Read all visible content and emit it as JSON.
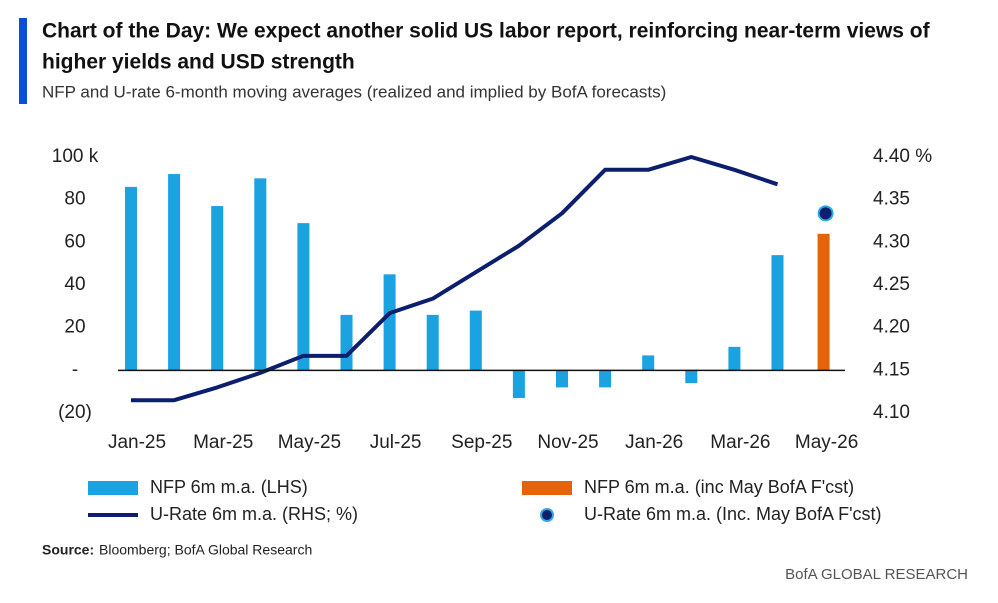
{
  "chart_data": {
    "type": "bar-line",
    "title_line1": "Chart of the Day: We expect another solid US labor report, reinforcing near-term views of",
    "title_line2": "higher yields and USD strength",
    "subtitle": "NFP and U-rate 6-month moving averages (realized and implied by BofA forecasts)",
    "categories": [
      "Jan-25",
      null,
      "Mar-25",
      null,
      "May-25",
      null,
      "Jul-25",
      null,
      "Sep-25",
      null,
      "Nov-25",
      null,
      "Jan-26",
      null,
      "Mar-26",
      null,
      "May-26"
    ],
    "series": [
      {
        "name": "NFP 6m m.a. (LHS)",
        "type": "bar",
        "axis": "y",
        "color": "#1aa3e0",
        "values": [
          86,
          92,
          77,
          90,
          69,
          26,
          45,
          26,
          28,
          -13,
          -8,
          -8,
          7,
          -6,
          11,
          54,
          null
        ]
      },
      {
        "name": "NFP 6m m.a. (inc May BofA F'cst)",
        "type": "bar",
        "axis": "y",
        "color": "#e5640b",
        "values": [
          null,
          null,
          null,
          null,
          null,
          null,
          null,
          null,
          null,
          null,
          null,
          null,
          null,
          null,
          null,
          null,
          64
        ]
      },
      {
        "name": "U-Rate 6m m.a. (RHS; %)",
        "type": "line",
        "axis": "y2",
        "color": "#0c1f6e",
        "values": [
          4.115,
          4.115,
          4.13,
          4.147,
          4.167,
          4.167,
          4.217,
          4.234,
          4.265,
          4.296,
          4.334,
          4.385,
          4.385,
          4.4,
          4.385,
          4.368,
          null
        ]
      },
      {
        "name": "U-Rate 6m m.a. (Inc. May BofA F'cst)",
        "type": "dot",
        "axis": "y2",
        "color": "#0c1f6e",
        "values": [
          null,
          null,
          null,
          null,
          null,
          null,
          null,
          null,
          null,
          null,
          null,
          null,
          null,
          null,
          null,
          null,
          4.334
        ]
      }
    ],
    "ylim": [
      -20,
      100
    ],
    "yticks": [
      {
        "value": -20,
        "label": "(20)"
      },
      {
        "value": 0,
        "label": "-"
      },
      20,
      40,
      60,
      80,
      {
        "value": 100,
        "label": "100 k"
      }
    ],
    "y2lim": [
      4.1,
      4.4
    ],
    "y2ticks": [
      {
        "value": 4.1,
        "label": "4.10"
      },
      4.15,
      {
        "value": 4.2,
        "label": "4.20"
      },
      4.25,
      {
        "value": 4.3,
        "label": "4.30"
      },
      4.35,
      {
        "value": 4.4,
        "label": "4.40 %"
      }
    ],
    "source_label": "Source:",
    "source_text": "Bloomberg; BofA Global Research",
    "footer": "BofA GLOBAL RESEARCH"
  }
}
